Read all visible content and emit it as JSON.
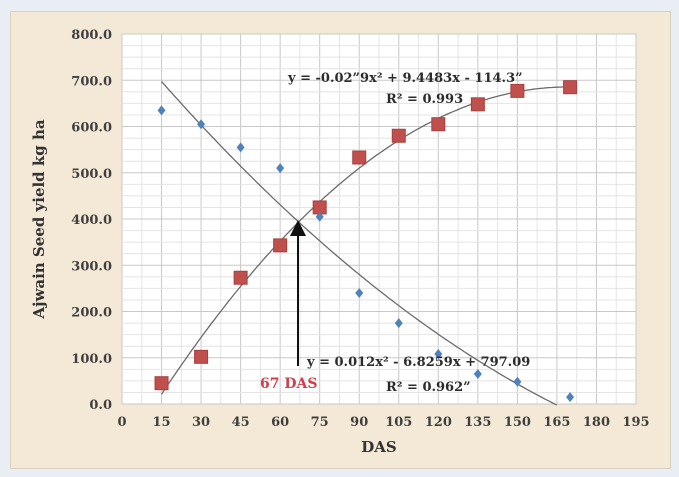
{
  "chart_data": {
    "type": "scatter",
    "title": "",
    "xlabel": "DAS",
    "ylabel": "Ajwain Seed yield kg ha",
    "xlim": [
      0,
      195
    ],
    "ylim": [
      0,
      800
    ],
    "x_ticks": [
      "0",
      "15",
      "30",
      "45",
      "60",
      "75",
      "90",
      "105",
      "120",
      "135",
      "150",
      "165",
      "180",
      "195"
    ],
    "y_ticks": [
      "0.0",
      "100.0",
      "200.0",
      "300.0",
      "400.0",
      "500.0",
      "600.0",
      "700.0",
      "800.0"
    ],
    "grid": true,
    "series": [
      {
        "marker": "square",
        "color": "#c0504d",
        "x": [
          15,
          30,
          45,
          60,
          75,
          90,
          105,
          120,
          135,
          150,
          170
        ],
        "y": [
          45,
          102,
          273,
          343,
          425,
          533,
          580,
          605,
          648,
          677,
          685
        ],
        "trendline": {
          "type": "poly2",
          "a": -0.0279,
          "b": 9.4483,
          "c": -114.37
        }
      },
      {
        "marker": "diamond",
        "color": "#4f81bd",
        "x": [
          15,
          30,
          45,
          60,
          75,
          90,
          105,
          120,
          135,
          150,
          170
        ],
        "y": [
          635,
          605,
          555,
          510,
          405,
          240,
          175,
          108,
          65,
          48,
          15
        ],
        "trendline": {
          "type": "poly2",
          "a": 0.012,
          "b": -6.8259,
          "c": 797.09
        }
      }
    ],
    "annotations": [
      {
        "text": "y = -0.02”9x² + 9.4483x - 114.3”"
      },
      {
        "text": "R² = 0.993"
      },
      {
        "text": "y = 0.012x² - 6.8259x + 797.09"
      },
      {
        "text": "R² = 0.962”"
      },
      {
        "text": "67 DAS",
        "color": "#d0404a",
        "x": 67,
        "y": 390
      }
    ]
  }
}
